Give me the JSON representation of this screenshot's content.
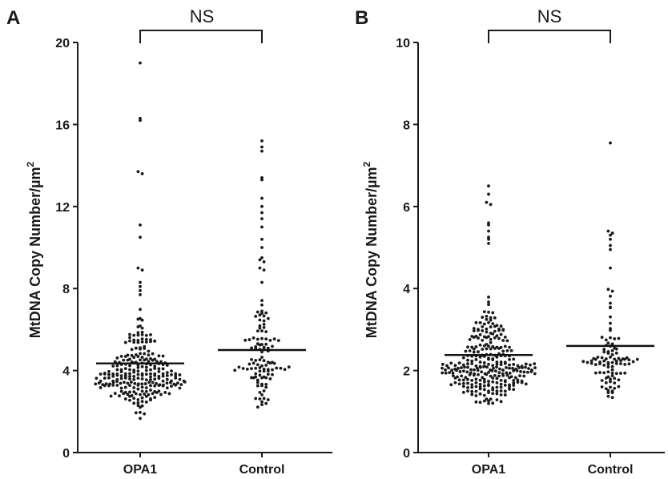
{
  "chart_data": [
    {
      "type": "scatter",
      "panel": "A",
      "ylabel": "MtDNA Copy Number/µm",
      "ylabel_sup": "2",
      "ylim": [
        0,
        20
      ],
      "yticks": [
        0,
        4,
        8,
        12,
        16,
        20
      ],
      "categories": [
        "OPA1",
        "Control"
      ],
      "significance": "NS",
      "groups": [
        {
          "name": "OPA1",
          "mean": 4.35,
          "n": 260,
          "range": [
            1.3,
            19.0
          ],
          "outliers": [
            19.0,
            16.3,
            16.2,
            13.7,
            13.6,
            11.1,
            10.5,
            9.0,
            8.9,
            8.3,
            8.1,
            7.9,
            7.7
          ]
        },
        {
          "name": "Control",
          "mean": 5.0,
          "n": 120,
          "range": [
            1.0,
            15.2
          ],
          "outliers": [
            15.2,
            14.9,
            14.7,
            13.4,
            13.3,
            12.4,
            12.0,
            11.7,
            11.4,
            11.0,
            10.4,
            10.0,
            9.5,
            9.4,
            9.3,
            9.0,
            8.9,
            8.3
          ]
        }
      ]
    },
    {
      "type": "scatter",
      "panel": "B",
      "ylabel": "MtDNA Copy Number/µm",
      "ylabel_sup": "2",
      "ylim": [
        0,
        10
      ],
      "yticks": [
        0,
        2,
        4,
        6,
        8,
        10
      ],
      "categories": [
        "OPA1",
        "Control"
      ],
      "significance": "NS",
      "groups": [
        {
          "name": "OPA1",
          "mean": 2.38,
          "n": 300,
          "range": [
            0.75,
            6.5
          ],
          "outliers": [
            6.5,
            6.3,
            6.1,
            6.05,
            5.6,
            5.55,
            5.4,
            5.25,
            5.2,
            5.1
          ]
        },
        {
          "name": "Control",
          "mean": 2.6,
          "n": 100,
          "range": [
            0.95,
            7.55
          ],
          "outliers": [
            7.55,
            5.4,
            5.35,
            5.3,
            5.2,
            5.05,
            4.95,
            4.5
          ]
        }
      ]
    }
  ]
}
